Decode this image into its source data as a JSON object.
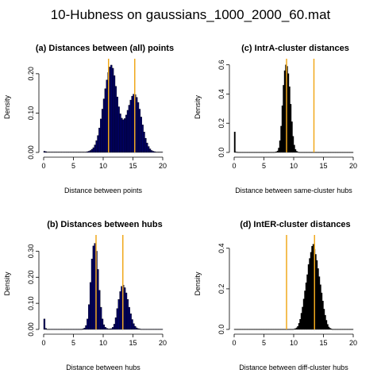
{
  "main_title": "10-Hubness on gaussians_1000_2000_60.mat",
  "colors": {
    "hist_fill_ab": "#00006e",
    "hist_fill_cd": "#000000",
    "vline": "#f0a81c"
  },
  "chart_data": [
    {
      "id": "a",
      "type": "bar",
      "title": "(a) Distances between (all) points",
      "xlabel": "Distance between points",
      "ylabel": "Density",
      "xlim": [
        0,
        20
      ],
      "ylim": [
        0,
        0.23
      ],
      "xticks": [
        "0",
        "5",
        "10",
        "15",
        "20"
      ],
      "yticks": [
        "0.00",
        "0.10",
        "0.20"
      ],
      "ytick_values": [
        0,
        0.1,
        0.2
      ],
      "vlines": [
        10.9,
        15.3
      ],
      "bins": {
        "start": 0,
        "width": 0.25,
        "values": [
          0.003,
          0.002,
          0.001,
          0.001,
          0.001,
          0.001,
          0.001,
          0.001,
          0.001,
          0.001,
          0.001,
          0.001,
          0.001,
          0.001,
          0.001,
          0.001,
          0.001,
          0.001,
          0.001,
          0.001,
          0.001,
          0.001,
          0.001,
          0.001,
          0.001,
          0.001,
          0.001,
          0.001,
          0.001,
          0.002,
          0.003,
          0.005,
          0.008,
          0.012,
          0.019,
          0.03,
          0.043,
          0.062,
          0.085,
          0.11,
          0.136,
          0.162,
          0.184,
          0.203,
          0.217,
          0.222,
          0.214,
          0.195,
          0.168,
          0.141,
          0.116,
          0.098,
          0.087,
          0.083,
          0.086,
          0.095,
          0.107,
          0.12,
          0.133,
          0.143,
          0.148,
          0.147,
          0.14,
          0.127,
          0.11,
          0.09,
          0.07,
          0.052,
          0.036,
          0.024,
          0.015,
          0.009,
          0.005,
          0.003,
          0.002,
          0.001,
          0.001,
          0.001,
          0.001,
          0.001
        ]
      }
    },
    {
      "id": "b",
      "type": "bar",
      "title": "(b) Distances between hubs",
      "xlabel": "Distance between hubs",
      "ylabel": "Density",
      "xlim": [
        0,
        20
      ],
      "ylim": [
        0,
        0.35
      ],
      "xticks": [
        "0",
        "5",
        "10",
        "15",
        "20"
      ],
      "yticks": [
        "0.00",
        "0.10",
        "0.20",
        "0.30"
      ],
      "ytick_values": [
        0,
        0.1,
        0.2,
        0.3
      ],
      "vlines": [
        8.8,
        13.3
      ],
      "bins": {
        "start": 0,
        "width": 0.25,
        "values": [
          0.04,
          0.004,
          0.001,
          0.001,
          0.001,
          0.001,
          0.001,
          0.001,
          0.001,
          0.001,
          0.001,
          0.001,
          0.001,
          0.001,
          0.001,
          0.001,
          0.001,
          0.001,
          0.001,
          0.001,
          0.001,
          0.001,
          0.001,
          0.001,
          0.001,
          0.001,
          0.002,
          0.005,
          0.015,
          0.04,
          0.095,
          0.18,
          0.27,
          0.32,
          0.33,
          0.3,
          0.23,
          0.15,
          0.085,
          0.04,
          0.018,
          0.008,
          0.004,
          0.002,
          0.002,
          0.003,
          0.008,
          0.02,
          0.045,
          0.08,
          0.115,
          0.145,
          0.165,
          0.17,
          0.16,
          0.14,
          0.115,
          0.085,
          0.06,
          0.038,
          0.022,
          0.012,
          0.006,
          0.003,
          0.002,
          0.001,
          0.001,
          0.001,
          0.001,
          0.001,
          0.001,
          0.001,
          0.001,
          0.001,
          0.001,
          0.001,
          0.001,
          0.001,
          0.001,
          0.001
        ]
      }
    },
    {
      "id": "c",
      "type": "bar",
      "title": "(c) IntrA-cluster distances",
      "xlabel": "Distance between same-cluster hubs",
      "ylabel": "Density",
      "xlim": [
        0,
        20
      ],
      "ylim": [
        0,
        0.62
      ],
      "xticks": [
        "0",
        "5",
        "10",
        "15",
        "20"
      ],
      "yticks": [
        "0.0",
        "0.2",
        "0.4",
        "0.6"
      ],
      "ytick_values": [
        0,
        0.2,
        0.4,
        0.6
      ],
      "vlines": [
        8.8,
        13.4
      ],
      "bins": {
        "start": 0,
        "width": 0.2,
        "values": [
          0.14,
          0.003,
          0.002,
          0.001,
          0.001,
          0.001,
          0.001,
          0.001,
          0.001,
          0.001,
          0.001,
          0.001,
          0.001,
          0.001,
          0.001,
          0.001,
          0.001,
          0.001,
          0.001,
          0.001,
          0.001,
          0.001,
          0.001,
          0.001,
          0.001,
          0.001,
          0.001,
          0.001,
          0.001,
          0.001,
          0.001,
          0.001,
          0.001,
          0.001,
          0.002,
          0.004,
          0.01,
          0.03,
          0.08,
          0.18,
          0.32,
          0.46,
          0.56,
          0.6,
          0.59,
          0.54,
          0.45,
          0.33,
          0.21,
          0.11,
          0.05,
          0.02,
          0.008,
          0.003,
          0.001,
          0.001,
          0.001,
          0.001,
          0.001,
          0.001,
          0.001,
          0.001,
          0.001,
          0.001,
          0.001,
          0.001,
          0.001,
          0.001,
          0.001,
          0.001,
          0.001,
          0.001,
          0.001,
          0.001,
          0.001,
          0.001,
          0.001,
          0.001,
          0.001,
          0.001,
          0.001,
          0.001,
          0.001,
          0.001,
          0.001,
          0.001,
          0.001,
          0.001,
          0.001,
          0.001,
          0.001,
          0.001,
          0.001,
          0.001,
          0.001,
          0.001,
          0.001,
          0.001,
          0.001,
          0.001
        ]
      }
    },
    {
      "id": "d",
      "type": "bar",
      "title": "(d) IntER-cluster distances",
      "xlabel": "Distance between diff-cluster hubs",
      "ylabel": "Density",
      "xlim": [
        0,
        20
      ],
      "ylim": [
        0,
        0.45
      ],
      "xticks": [
        "0",
        "5",
        "10",
        "15",
        "20"
      ],
      "yticks": [
        "0.0",
        "0.2",
        "0.4"
      ],
      "ytick_values": [
        0,
        0.2,
        0.4
      ],
      "vlines": [
        8.8,
        13.5
      ],
      "bins": {
        "start": 0,
        "width": 0.2,
        "values": [
          0.001,
          0.001,
          0.001,
          0.001,
          0.001,
          0.001,
          0.001,
          0.001,
          0.001,
          0.001,
          0.001,
          0.001,
          0.001,
          0.001,
          0.001,
          0.001,
          0.001,
          0.001,
          0.001,
          0.001,
          0.001,
          0.001,
          0.001,
          0.001,
          0.001,
          0.001,
          0.001,
          0.001,
          0.001,
          0.001,
          0.001,
          0.001,
          0.001,
          0.001,
          0.001,
          0.001,
          0.001,
          0.001,
          0.001,
          0.001,
          0.001,
          0.001,
          0.001,
          0.001,
          0.001,
          0.001,
          0.001,
          0.001,
          0.001,
          0.001,
          0.002,
          0.004,
          0.008,
          0.015,
          0.03,
          0.05,
          0.08,
          0.11,
          0.15,
          0.19,
          0.23,
          0.27,
          0.32,
          0.35,
          0.38,
          0.41,
          0.42,
          0.395,
          0.37,
          0.34,
          0.3,
          0.26,
          0.22,
          0.18,
          0.14,
          0.1,
          0.07,
          0.045,
          0.025,
          0.012,
          0.006,
          0.003,
          0.001,
          0.001,
          0.001,
          0.001,
          0.001,
          0.001,
          0.001,
          0.001,
          0.001,
          0.001,
          0.001,
          0.001,
          0.001,
          0.001,
          0.001,
          0.001,
          0.001,
          0.001
        ]
      }
    }
  ]
}
